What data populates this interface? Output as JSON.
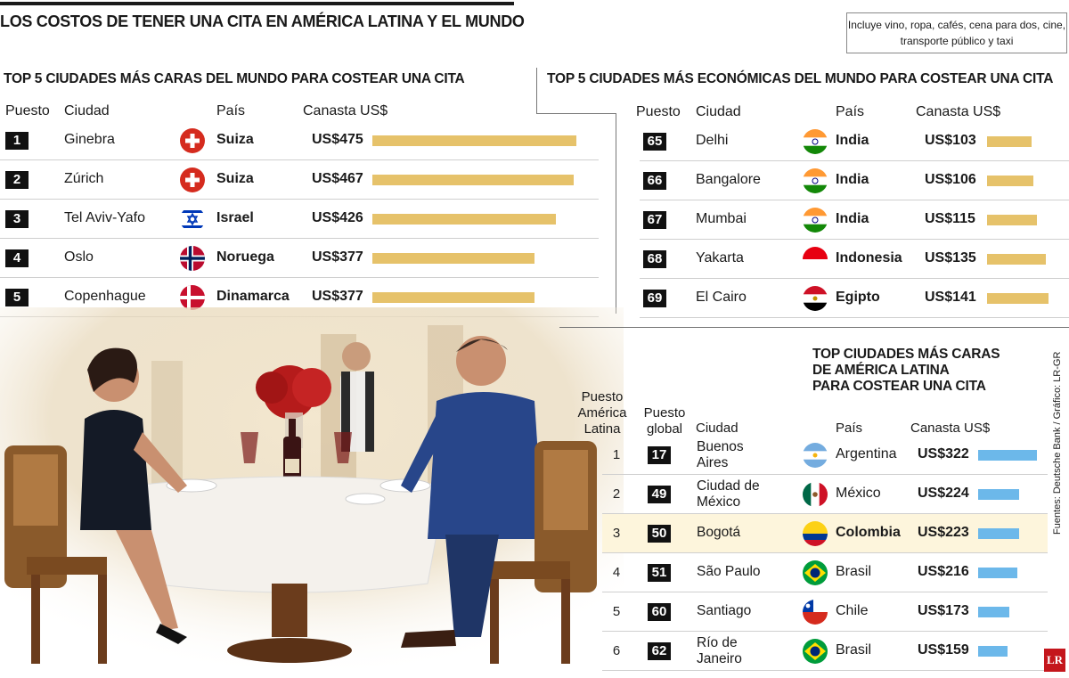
{
  "title": "LOS COSTOS DE TENER UNA CITA EN AMÉRICA LATINA Y EL MUNDO",
  "note": "Incluye vino, ropa, cafés, cena para dos, cine, transporte público y taxi",
  "source": "Fuentes: Deutsche Bank / Gráfico: LR-GR",
  "logo": "LR",
  "colors": {
    "gold_bar": "#e6c26a",
    "blue_bar": "#6cb8ea",
    "highlight": "#fdf5dc"
  },
  "chart_data": [
    {
      "type": "bar",
      "title": "TOP 5 CIUDADES MÁS CARAS DEL MUNDO PARA COSTEAR UNA CITA",
      "headers": {
        "rank": "Puesto",
        "city": "Ciudad",
        "country": "País",
        "price": "Canasta US$"
      },
      "rows": [
        {
          "rank": "1",
          "city": "Ginebra",
          "country": "Suiza",
          "flag": "switzerland-flag-icon",
          "price_label": "US$475",
          "value": 475
        },
        {
          "rank": "2",
          "city": "Zúrich",
          "country": "Suiza",
          "flag": "switzerland-flag-icon",
          "price_label": "US$467",
          "value": 467
        },
        {
          "rank": "3",
          "city": "Tel Aviv-Yafo",
          "country": "Israel",
          "flag": "israel-flag-icon",
          "price_label": "US$426",
          "value": 426
        },
        {
          "rank": "4",
          "city": "Oslo",
          "country": "Noruega",
          "flag": "norway-flag-icon",
          "price_label": "US$377",
          "value": 377
        },
        {
          "rank": "5",
          "city": "Copenhague",
          "country": "Dinamarca",
          "flag": "denmark-flag-icon",
          "price_label": "US$377",
          "value": 377
        }
      ]
    },
    {
      "type": "bar",
      "title": "TOP 5 CIUDADES MÁS ECONÓMICAS DEL MUNDO PARA COSTEAR UNA CITA",
      "headers": {
        "rank": "Puesto",
        "city": "Ciudad",
        "country": "País",
        "price": "Canasta US$"
      },
      "rows": [
        {
          "rank": "65",
          "city": "Delhi",
          "country": "India",
          "flag": "india-flag-icon",
          "price_label": "US$103",
          "value": 103
        },
        {
          "rank": "66",
          "city": "Bangalore",
          "country": "India",
          "flag": "india-flag-icon",
          "price_label": "US$106",
          "value": 106
        },
        {
          "rank": "67",
          "city": "Mumbai",
          "country": "India",
          "flag": "india-flag-icon",
          "price_label": "US$115",
          "value": 115
        },
        {
          "rank": "68",
          "city": "Yakarta",
          "country": "Indonesia",
          "flag": "indonesia-flag-icon",
          "price_label": "US$135",
          "value": 135
        },
        {
          "rank": "69",
          "city": "El Cairo",
          "country": "Egipto",
          "flag": "egypt-flag-icon",
          "price_label": "US$141",
          "value": 141
        }
      ]
    },
    {
      "type": "bar",
      "title_lines": [
        "TOP CIUDADES MÁS CARAS",
        "DE AMÉRICA LATINA",
        "PARA COSTEAR UNA CITA"
      ],
      "headers": {
        "rank_latam_1": "Puesto",
        "rank_latam_2": "América",
        "rank_latam_3": "Latina",
        "rank_global_1": "Puesto",
        "rank_global_2": "global",
        "city": "Ciudad",
        "country": "País",
        "price": "Canasta US$"
      },
      "rows": [
        {
          "rank_latam": "1",
          "rank_global": "17",
          "city_lines": [
            "Buenos",
            "Aires"
          ],
          "country": "Argentina",
          "flag": "argentina-flag-icon",
          "price_label": "US$322",
          "value": 322,
          "highlight": false
        },
        {
          "rank_latam": "2",
          "rank_global": "49",
          "city_lines": [
            "Ciudad de",
            "México"
          ],
          "country": "México",
          "flag": "mexico-flag-icon",
          "price_label": "US$224",
          "value": 224,
          "highlight": false
        },
        {
          "rank_latam": "3",
          "rank_global": "50",
          "city_lines": [
            "Bogotá"
          ],
          "country": "Colombia",
          "flag": "colombia-flag-icon",
          "price_label": "US$223",
          "value": 223,
          "highlight": true
        },
        {
          "rank_latam": "4",
          "rank_global": "51",
          "city_lines": [
            "São Paulo"
          ],
          "country": "Brasil",
          "flag": "brazil-flag-icon",
          "price_label": "US$216",
          "value": 216,
          "highlight": false
        },
        {
          "rank_latam": "5",
          "rank_global": "60",
          "city_lines": [
            "Santiago"
          ],
          "country": "Chile",
          "flag": "chile-flag-icon",
          "price_label": "US$173",
          "value": 173,
          "highlight": false
        },
        {
          "rank_latam": "6",
          "rank_global": "62",
          "city_lines": [
            "Río de",
            "Janeiro"
          ],
          "country": "Brasil",
          "flag": "brazil-flag-icon",
          "price_label": "US$159",
          "value": 159,
          "highlight": false
        }
      ]
    }
  ]
}
